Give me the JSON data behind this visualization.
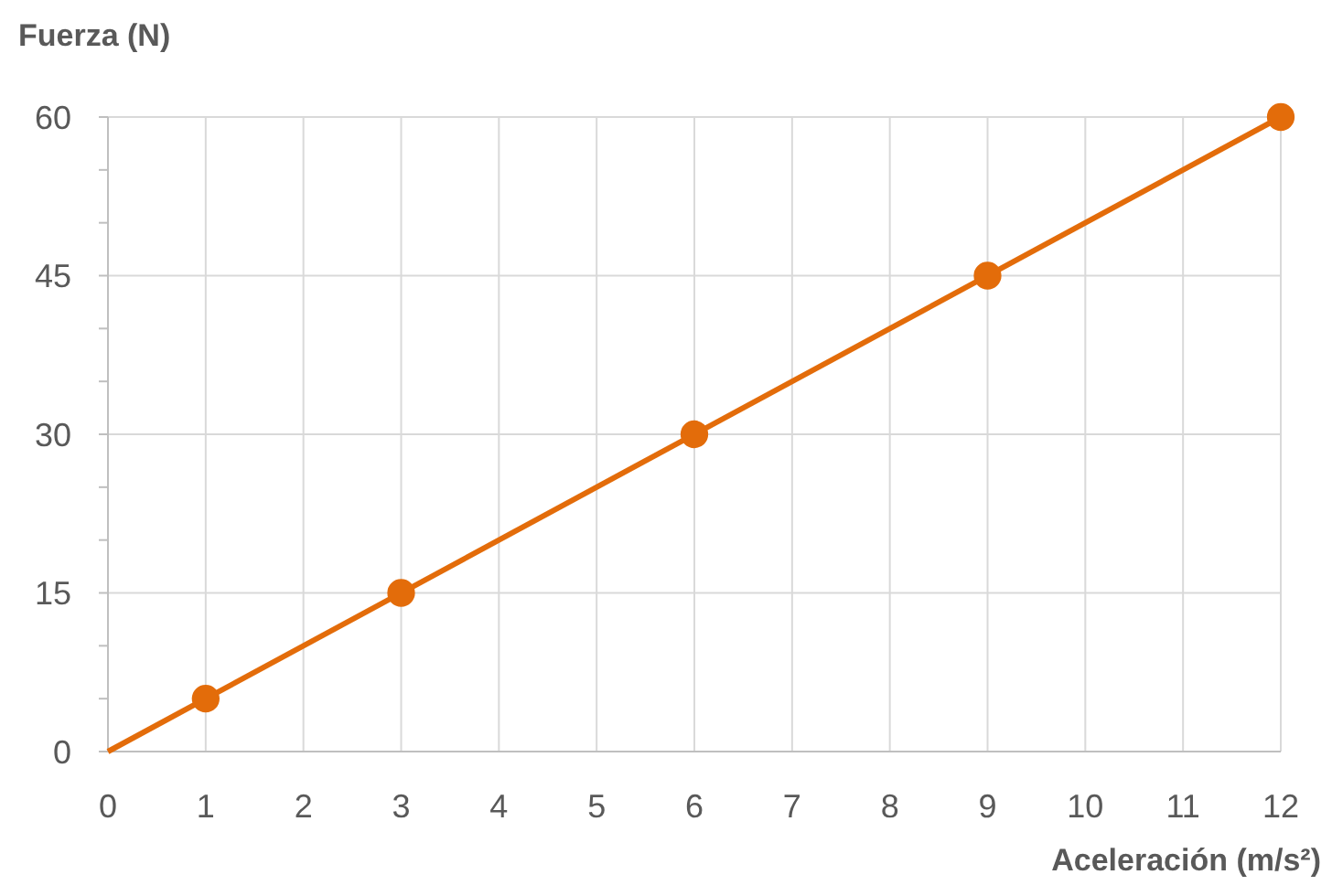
{
  "chart_data": {
    "type": "line",
    "ylabel": "Fuerza (N)",
    "xlabel": "Aceleración (m/s²)",
    "xlim": [
      0,
      12
    ],
    "xticks": [
      0,
      1,
      2,
      3,
      4,
      5,
      6,
      7,
      8,
      9,
      10,
      11,
      12
    ],
    "ylim": [
      0,
      60
    ],
    "yticks": [
      0,
      {
        "value": 5,
        "label": null
      },
      {
        "value": 10,
        "label": null
      },
      15,
      {
        "value": 20,
        "label": null
      },
      {
        "value": 25,
        "label": null
      },
      30,
      {
        "value": 35,
        "label": null
      },
      {
        "value": 40,
        "label": null
      },
      45,
      {
        "value": 50,
        "label": null
      },
      {
        "value": 55,
        "label": null
      },
      60
    ],
    "grid": true,
    "series": [
      {
        "color": "#e36c0a",
        "x": [
          0,
          12
        ],
        "values": [
          0,
          60
        ],
        "marker": "none"
      },
      {
        "type": "scatter",
        "color": "#e36c0a",
        "x": [
          1,
          3,
          6,
          9,
          12
        ],
        "values": [
          5,
          15,
          30,
          45,
          60
        ],
        "marker": "circle"
      }
    ]
  }
}
